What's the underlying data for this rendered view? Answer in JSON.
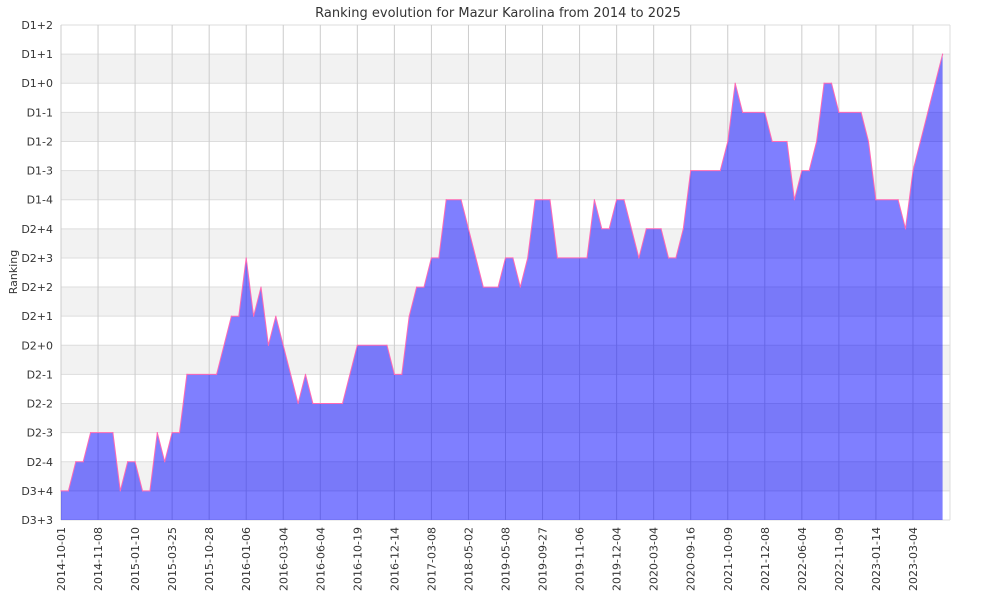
{
  "chart_data": {
    "type": "area",
    "title": "Ranking evolution for Mazur Karolina from 2014 to 2025",
    "xlabel": "",
    "ylabel": "Ranking",
    "y_levels": [
      "D3+3",
      "D3+4",
      "D2-4",
      "D2-3",
      "D2-2",
      "D2-1",
      "D2+0",
      "D2+1",
      "D2+2",
      "D2+3",
      "D2+4",
      "D1-4",
      "D1-3",
      "D1-2",
      "D1-1",
      "D1+0",
      "D1+1",
      "D1+2"
    ],
    "x_ticks": [
      {
        "index": 0,
        "label": "2014-10-01"
      },
      {
        "index": 5,
        "label": "2014-11-08"
      },
      {
        "index": 10,
        "label": "2015-01-10"
      },
      {
        "index": 15,
        "label": "2015-03-25"
      },
      {
        "index": 20,
        "label": "2015-10-28"
      },
      {
        "index": 25,
        "label": "2016-01-06"
      },
      {
        "index": 30,
        "label": "2016-03-04"
      },
      {
        "index": 35,
        "label": "2016-06-04"
      },
      {
        "index": 40,
        "label": "2016-10-19"
      },
      {
        "index": 45,
        "label": "2016-12-14"
      },
      {
        "index": 50,
        "label": "2017-03-08"
      },
      {
        "index": 55,
        "label": "2018-05-02"
      },
      {
        "index": 60,
        "label": "2019-05-08"
      },
      {
        "index": 65,
        "label": "2019-09-27"
      },
      {
        "index": 70,
        "label": "2019-11-06"
      },
      {
        "index": 75,
        "label": "2019-12-04"
      },
      {
        "index": 80,
        "label": "2020-03-04"
      },
      {
        "index": 85,
        "label": "2020-09-16"
      },
      {
        "index": 90,
        "label": "2021-10-09"
      },
      {
        "index": 95,
        "label": "2021-12-08"
      },
      {
        "index": 100,
        "label": "2022-06-04"
      },
      {
        "index": 105,
        "label": "2022-11-09"
      },
      {
        "index": 110,
        "label": "2023-01-14"
      },
      {
        "index": 115,
        "label": "2023-03-04"
      }
    ],
    "xlim": [
      0,
      120
    ],
    "ylim": [
      0,
      17
    ],
    "grid": true,
    "series": [
      {
        "name": "Ranking",
        "points": [
          [
            0,
            1
          ],
          [
            1,
            1
          ],
          [
            2,
            2
          ],
          [
            3,
            2
          ],
          [
            4,
            3
          ],
          [
            7,
            3
          ],
          [
            8,
            1
          ],
          [
            9,
            2
          ],
          [
            10,
            2
          ],
          [
            11,
            1
          ],
          [
            12,
            1
          ],
          [
            13,
            3
          ],
          [
            14,
            2
          ],
          [
            15,
            3
          ],
          [
            16,
            3
          ],
          [
            17,
            5
          ],
          [
            21,
            5
          ],
          [
            23,
            7
          ],
          [
            24,
            7
          ],
          [
            25,
            9
          ],
          [
            26,
            7
          ],
          [
            27,
            8
          ],
          [
            28,
            6
          ],
          [
            29,
            7
          ],
          [
            32,
            4
          ],
          [
            33,
            5
          ],
          [
            34,
            4
          ],
          [
            38,
            4
          ],
          [
            40,
            6
          ],
          [
            44,
            6
          ],
          [
            45,
            5
          ],
          [
            46,
            5
          ],
          [
            47,
            7
          ],
          [
            48,
            8
          ],
          [
            49,
            8
          ],
          [
            50,
            9
          ],
          [
            51,
            9
          ],
          [
            52,
            11
          ],
          [
            54,
            11
          ],
          [
            57,
            8
          ],
          [
            59,
            8
          ],
          [
            60,
            9
          ],
          [
            61,
            9
          ],
          [
            62,
            8
          ],
          [
            63,
            9
          ],
          [
            64,
            11
          ],
          [
            66,
            11
          ],
          [
            67,
            9
          ],
          [
            71,
            9
          ],
          [
            72,
            11
          ],
          [
            73,
            10
          ],
          [
            74,
            10
          ],
          [
            75,
            11
          ],
          [
            76,
            11
          ],
          [
            78,
            9
          ],
          [
            79,
            10
          ],
          [
            81,
            10
          ],
          [
            82,
            9
          ],
          [
            83,
            9
          ],
          [
            84,
            10
          ],
          [
            85,
            12
          ],
          [
            89,
            12
          ],
          [
            90,
            13
          ],
          [
            91,
            15
          ],
          [
            92,
            14
          ],
          [
            95,
            14
          ],
          [
            96,
            13
          ],
          [
            98,
            13
          ],
          [
            99,
            11
          ],
          [
            100,
            12
          ],
          [
            101,
            12
          ],
          [
            102,
            13
          ],
          [
            103,
            15
          ],
          [
            104,
            15
          ],
          [
            105,
            14
          ],
          [
            108,
            14
          ],
          [
            109,
            13
          ],
          [
            110,
            11
          ],
          [
            113,
            11
          ],
          [
            114,
            10
          ],
          [
            115,
            12
          ],
          [
            116,
            13
          ],
          [
            117,
            14
          ],
          [
            118,
            15
          ],
          [
            119,
            16
          ]
        ]
      }
    ],
    "colors": {
      "fill": "#0000ff",
      "line": "#ff69b4",
      "band": "#f2f2f2",
      "grid": "#cccccc"
    }
  }
}
